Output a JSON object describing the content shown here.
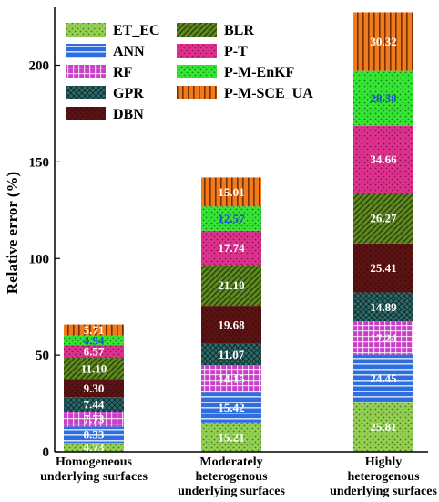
{
  "chart_data": {
    "type": "bar",
    "stacked": true,
    "ylabel": "Relative error (%)",
    "xlabel": "",
    "ylim": [
      0,
      230
    ],
    "yticks": [
      0,
      50,
      100,
      150,
      200
    ],
    "categories": [
      [
        "Homogeneous",
        "underlying surfaces"
      ],
      [
        "Moderately",
        "heterogenous",
        "underlying surfaces"
      ],
      [
        "Highly",
        "heterogenous",
        "underlying surfaces"
      ]
    ],
    "series": [
      {
        "name": "ET_EC",
        "color": "#92d050",
        "pattern": "dots",
        "values": [
          4.73,
          15.21,
          25.81
        ],
        "labels": [
          "4.73",
          "15.21",
          "25.81"
        ]
      },
      {
        "name": "ANN",
        "color": "#2f6ee0",
        "pattern": "hlines",
        "values": [
          8.33,
          15.42,
          24.45
        ],
        "labels": [
          "8.33",
          "15.42",
          "24.45"
        ]
      },
      {
        "name": "RF",
        "color": "#c83fc8",
        "pattern": "grid",
        "values": [
          7.73,
          14.15,
          17.24
        ],
        "labels": [
          "7.73",
          "14.15",
          "17.24"
        ]
      },
      {
        "name": "GPR",
        "color": "#2e6d6d",
        "pattern": "cross",
        "values": [
          7.44,
          11.07,
          14.89
        ],
        "labels": [
          "7.44",
          "11.07",
          "14.89"
        ]
      },
      {
        "name": "DBN",
        "color": "#5a1212",
        "pattern": "dots",
        "values": [
          9.3,
          19.68,
          25.41
        ],
        "labels": [
          "9.30",
          "19.68",
          "25.41"
        ]
      },
      {
        "name": "BLR",
        "color": "#5e8a1f",
        "pattern": "diag",
        "values": [
          11.1,
          21.1,
          26.27
        ],
        "labels": [
          "11.10",
          "21.10",
          "26.27"
        ]
      },
      {
        "name": "P-T",
        "color": "#e0318f",
        "pattern": "dots",
        "values": [
          6.57,
          17.74,
          34.66
        ],
        "labels": [
          "6.57",
          "17.74",
          "34.66"
        ]
      },
      {
        "name": "P-M-EnKF",
        "color": "#35e635",
        "pattern": "dots",
        "values": [
          4.94,
          12.57,
          28.38
        ],
        "labels": [
          "4.94",
          "12.57",
          "28.38"
        ]
      },
      {
        "name": "P-M-SCE_UA",
        "color": "#ee7b1e",
        "pattern": "vlines",
        "values": [
          5.71,
          15.01,
          30.32
        ],
        "labels": [
          "5.71",
          "15.01",
          "30.32"
        ]
      }
    ],
    "label_colors": [
      "#ffffff",
      "#ffffff",
      "#ffffff",
      "#ffffff",
      "#ffffff",
      "#ffffff",
      "#ffffff",
      "#1f4fd8",
      "#ffffff"
    ],
    "legend": "top-left, two columns",
    "grid": false
  }
}
